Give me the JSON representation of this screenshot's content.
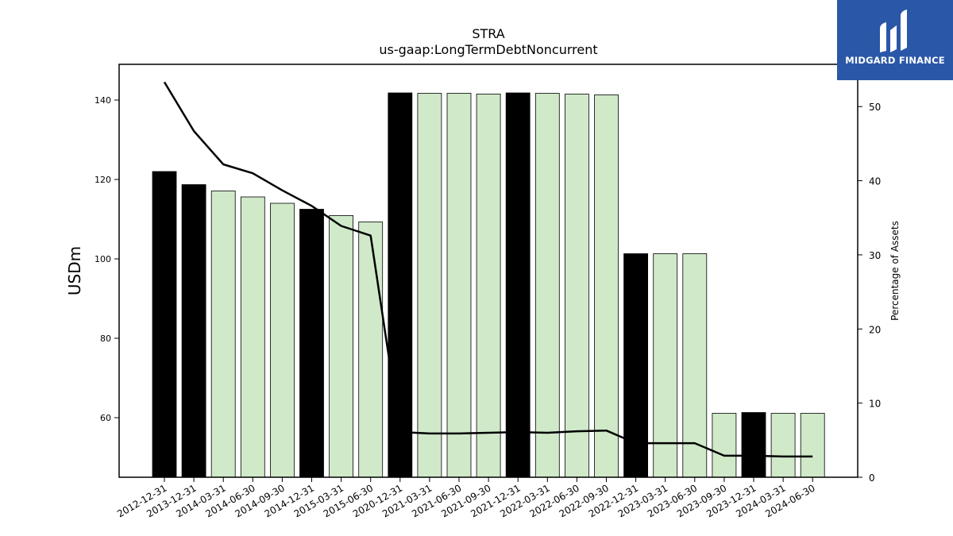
{
  "chart_data": {
    "type": "bar",
    "title": "STRA",
    "subtitle": "us-gaap:LongTermDebtNoncurrent",
    "ylabel": "USDm",
    "ylabel_right": "Percentage of Assets",
    "categories": [
      "2012-12-31",
      "2013-12-31",
      "2014-03-31",
      "2014-06-30",
      "2014-09-30",
      "2014-12-31",
      "2015-03-31",
      "2015-06-30",
      "2020-12-31",
      "2021-03-31",
      "2021-06-30",
      "2021-09-30",
      "2021-12-31",
      "2022-03-31",
      "2022-06-30",
      "2022-09-30",
      "2022-12-31",
      "2023-03-31",
      "2023-06-30",
      "2023-09-30",
      "2023-12-31",
      "2024-03-31",
      "2024-06-30"
    ],
    "series": [
      {
        "values": [
          122.0,
          118.7,
          117.1,
          115.6,
          114.0,
          112.5,
          110.9,
          109.3,
          141.8,
          141.7,
          141.7,
          141.5,
          141.8,
          141.7,
          141.5,
          141.3,
          101.3,
          101.3,
          101.3,
          61.1,
          61.3,
          61.1,
          61.1
        ],
        "is_annual": [
          true,
          true,
          false,
          false,
          false,
          true,
          false,
          false,
          true,
          false,
          false,
          false,
          true,
          false,
          false,
          false,
          true,
          false,
          false,
          false,
          true,
          false,
          false
        ]
      },
      {
        "axis": "right",
        "values": [
          53.3,
          46.7,
          42.2,
          41.0,
          38.7,
          36.6,
          33.9,
          32.6,
          6.1,
          5.9,
          5.9,
          6.0,
          6.1,
          6.0,
          6.2,
          6.3,
          4.6,
          4.6,
          4.6,
          2.9,
          2.9,
          2.8,
          2.8
        ]
      }
    ],
    "ylim": [
      45,
      149
    ],
    "yticks": [
      60,
      80,
      100,
      120,
      140
    ],
    "ylim_right": [
      0,
      55.7
    ],
    "yticks_right": [
      0,
      10,
      20,
      30,
      40,
      50
    ],
    "colors": {
      "annual": "#000000",
      "quarterly": "#cfe9c9",
      "bar_edge": "#000000",
      "line": "#000000"
    },
    "grid": false,
    "legend": "none"
  },
  "logo": {
    "text": "MIDGARD FINANCE",
    "icon": "midgard-logo-mark-icon",
    "background": "#2b57a8"
  }
}
